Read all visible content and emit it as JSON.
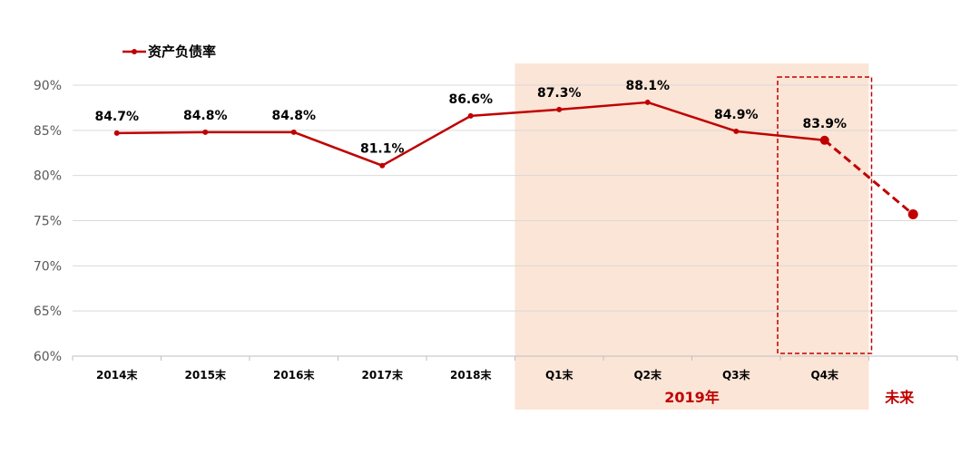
{
  "chart_data": {
    "type": "line",
    "legend": "top-left",
    "categories": [
      "2014末",
      "2015末",
      "2016末",
      "2017末",
      "2018末",
      "Q1末",
      "Q2末",
      "Q3末",
      "Q4末",
      ""
    ],
    "series": [
      {
        "name": "资产负债率",
        "values": [
          84.7,
          84.8,
          84.8,
          81.1,
          86.6,
          87.3,
          88.1,
          84.9,
          83.9,
          null
        ],
        "labels": [
          "84.7%",
          "84.8%",
          "84.8%",
          "81.1%",
          "86.6%",
          "87.3%",
          "88.1%",
          "84.9%",
          "83.9%",
          ""
        ]
      }
    ],
    "projection": {
      "from_index": 8,
      "to_index": 9,
      "to_value": 75.7,
      "style": "dashed"
    },
    "ylim": [
      60,
      90
    ],
    "yticks": [
      60,
      65,
      70,
      75,
      80,
      85,
      90
    ],
    "ytick_labels": [
      "60%",
      "65%",
      "70%",
      "75%",
      "80%",
      "85%",
      "90%"
    ],
    "grid": true,
    "highlight_region": {
      "from_index": 5,
      "to_index": 8,
      "label": "2019年"
    },
    "highlight_box": {
      "index": 8
    },
    "future_label": "未来",
    "colors": {
      "line": "#c00000",
      "highlight": "#fbe5d6",
      "grid": "#d9d9d9",
      "axis": "#bfbfbf",
      "tick_text": "#595959"
    }
  }
}
